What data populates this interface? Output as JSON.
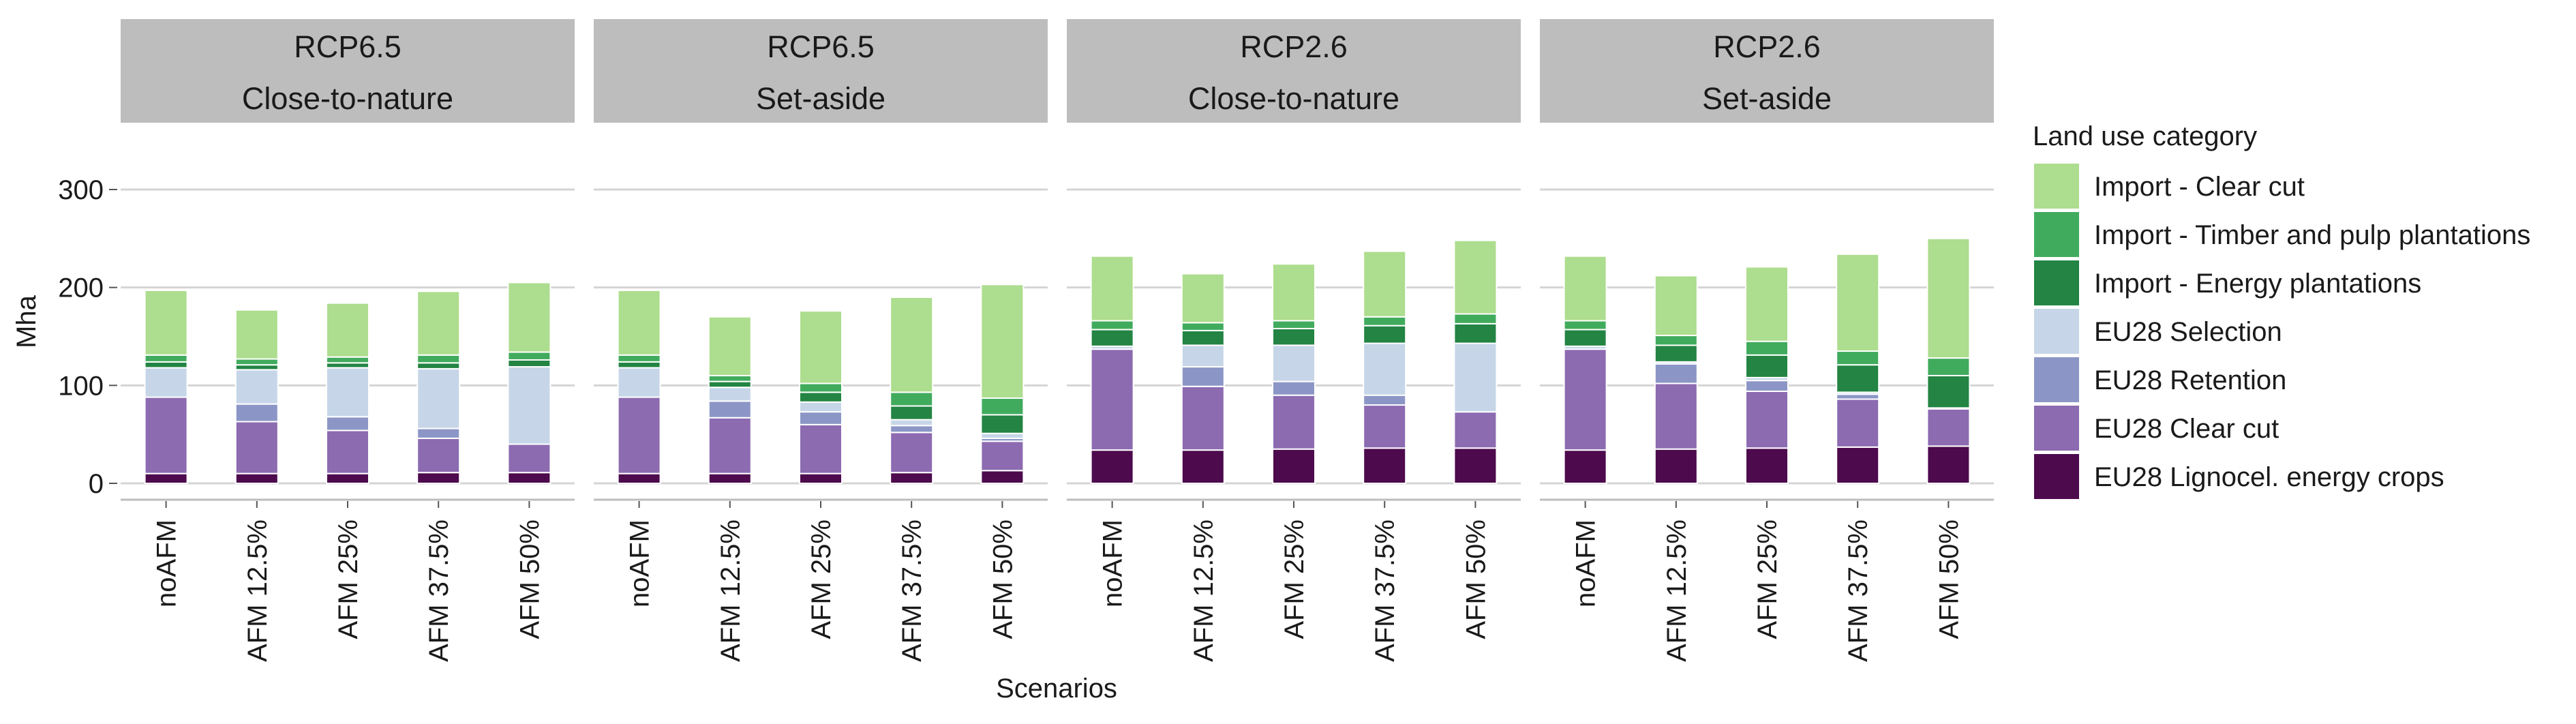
{
  "chart_data": {
    "type": "bar",
    "stacked": true,
    "title": "",
    "xlabel": "Scenarios",
    "ylabel": "Mha",
    "ylim": [
      0,
      300
    ],
    "yticks": [
      0,
      100,
      200,
      300
    ],
    "grid": true,
    "legend_position": "right",
    "legend_title": "Land use category",
    "categories": [
      "noAFM",
      "AFM 12.5%",
      "AFM 25%",
      "AFM 37.5%",
      "AFM 50%"
    ],
    "series_order_bottom_to_top": [
      "EU28 Lignocel. energy crops",
      "EU28 Clear cut",
      "EU28 Retention",
      "EU28 Selection",
      "Import - Energy plantations",
      "Import - Timber and pulp plantations",
      "Import - Clear cut"
    ],
    "legend_order": [
      "Import - Clear cut",
      "Import - Timber and pulp plantations",
      "Import - Energy plantations",
      "EU28 Selection",
      "EU28 Retention",
      "EU28 Clear cut",
      "EU28 Lignocel. energy crops"
    ],
    "colors": {
      "Import - Clear cut": "#addd8e",
      "Import - Timber and pulp plantations": "#41ab5d",
      "Import - Energy plantations": "#238443",
      "EU28 Selection": "#c6d6e8",
      "EU28 Retention": "#8c96c6",
      "EU28 Clear cut": "#8c6bb1",
      "EU28 Lignocel. energy crops": "#4d0a4d"
    },
    "panels": [
      {
        "strip": [
          "RCP6.5",
          "Close-to-nature"
        ],
        "series": [
          {
            "name": "EU28 Lignocel. energy crops",
            "values": [
              10,
              10,
              10,
              11,
              11
            ]
          },
          {
            "name": "EU28 Clear cut",
            "values": [
              78,
              53,
              44,
              35,
              29
            ]
          },
          {
            "name": "EU28 Retention",
            "values": [
              0,
              18,
              14,
              10,
              0
            ]
          },
          {
            "name": "EU28 Selection",
            "values": [
              30,
              35,
              50,
              61,
              79
            ]
          },
          {
            "name": "Import - Energy plantations",
            "values": [
              6,
              5,
              5,
              6,
              7
            ]
          },
          {
            "name": "Import - Timber and pulp plantations",
            "values": [
              7,
              6,
              6,
              8,
              8
            ]
          },
          {
            "name": "Import - Clear cut",
            "values": [
              66,
              50,
              55,
              65,
              71
            ]
          }
        ]
      },
      {
        "strip": [
          "RCP6.5",
          "Set-aside"
        ],
        "series": [
          {
            "name": "EU28 Lignocel. energy crops",
            "values": [
              10,
              10,
              10,
              11,
              13
            ]
          },
          {
            "name": "EU28 Clear cut",
            "values": [
              78,
              57,
              50,
              41,
              30
            ]
          },
          {
            "name": "EU28 Retention",
            "values": [
              0,
              17,
              13,
              7,
              3
            ]
          },
          {
            "name": "EU28 Selection",
            "values": [
              30,
              14,
              10,
              6,
              5
            ]
          },
          {
            "name": "Import - Energy plantations",
            "values": [
              6,
              6,
              10,
              14,
              19
            ]
          },
          {
            "name": "Import - Timber and pulp plantations",
            "values": [
              7,
              6,
              9,
              14,
              17
            ]
          },
          {
            "name": "Import - Clear cut",
            "values": [
              66,
              60,
              74,
              97,
              116
            ]
          }
        ]
      },
      {
        "strip": [
          "RCP2.6",
          "Close-to-nature"
        ],
        "series": [
          {
            "name": "EU28 Lignocel. energy crops",
            "values": [
              34,
              34,
              35,
              36,
              36
            ]
          },
          {
            "name": "EU28 Clear cut",
            "values": [
              103,
              65,
              55,
              44,
              37
            ]
          },
          {
            "name": "EU28 Retention",
            "values": [
              0,
              20,
              14,
              10,
              0
            ]
          },
          {
            "name": "EU28 Selection",
            "values": [
              3,
              22,
              37,
              53,
              70
            ]
          },
          {
            "name": "Import - Energy plantations",
            "values": [
              17,
              15,
              17,
              18,
              20
            ]
          },
          {
            "name": "Import - Timber and pulp plantations",
            "values": [
              9,
              8,
              8,
              9,
              10
            ]
          },
          {
            "name": "Import - Clear cut",
            "values": [
              66,
              50,
              58,
              67,
              75
            ]
          }
        ]
      },
      {
        "strip": [
          "RCP2.6",
          "Set-aside"
        ],
        "series": [
          {
            "name": "EU28 Lignocel. energy crops",
            "values": [
              34,
              35,
              36,
              37,
              38
            ]
          },
          {
            "name": "EU28 Clear cut",
            "values": [
              103,
              67,
              58,
              49,
              38
            ]
          },
          {
            "name": "EU28 Retention",
            "values": [
              0,
              20,
              11,
              5,
              0
            ]
          },
          {
            "name": "EU28 Selection",
            "values": [
              3,
              2,
              3,
              2,
              1
            ]
          },
          {
            "name": "Import - Energy plantations",
            "values": [
              17,
              17,
              23,
              28,
              33
            ]
          },
          {
            "name": "Import - Timber and pulp plantations",
            "values": [
              9,
              10,
              14,
              14,
              18
            ]
          },
          {
            "name": "Import - Clear cut",
            "values": [
              66,
              61,
              76,
              99,
              122
            ]
          }
        ]
      }
    ]
  }
}
